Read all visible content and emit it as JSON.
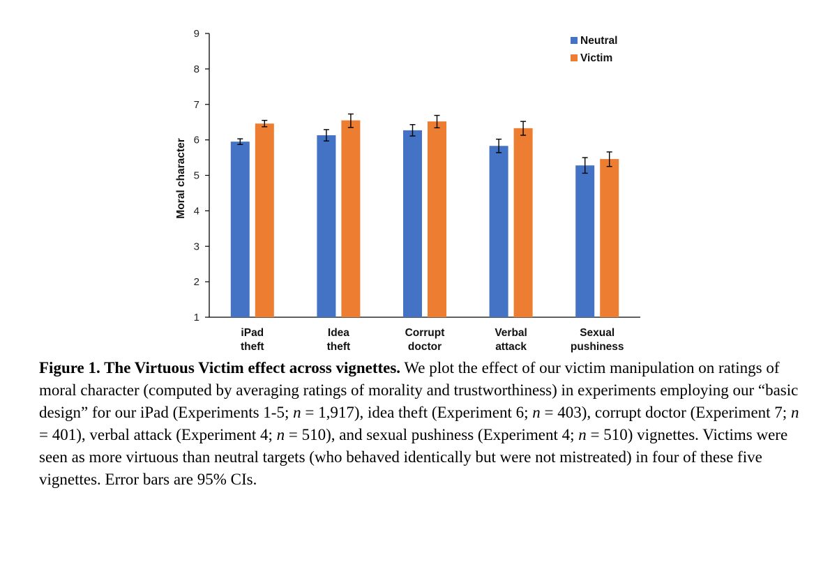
{
  "chart_data": {
    "type": "bar",
    "ylabel": "Moral character",
    "ylim": [
      1,
      9
    ],
    "yticks": [
      1,
      2,
      3,
      4,
      5,
      6,
      7,
      8,
      9
    ],
    "legend_position": "top-right",
    "categories": [
      [
        "iPad",
        "theft"
      ],
      [
        "Idea",
        "theft"
      ],
      [
        "Corrupt",
        "doctor"
      ],
      [
        "Verbal",
        "attack"
      ],
      [
        "Sexual",
        "pushiness"
      ]
    ],
    "series": [
      {
        "name": "Neutral",
        "color": "#4472C4",
        "values": [
          5.95,
          6.13,
          6.27,
          5.83,
          5.28
        ],
        "ci_low": [
          5.87,
          5.97,
          6.11,
          5.64,
          5.06
        ],
        "ci_high": [
          6.03,
          6.29,
          6.43,
          6.02,
          5.5
        ]
      },
      {
        "name": "Victim",
        "color": "#ED7D31",
        "values": [
          6.46,
          6.55,
          6.52,
          6.33,
          5.46
        ],
        "ci_low": [
          6.37,
          6.35,
          6.34,
          6.13,
          5.25
        ],
        "ci_high": [
          6.55,
          6.73,
          6.69,
          6.52,
          5.66
        ]
      }
    ]
  },
  "caption": {
    "lead": "Figure 1. The Virtuous Victim effect across vignettes.",
    "parts": [
      " We plot the effect of our victim manipulation on ratings of moral character (computed by averaging ratings of morality and trustworthiness) in experiments employing our “basic design” for our iPad (Experiments 1-5; ",
      "n",
      " = 1,917), idea theft (Experiment 6; ",
      "n",
      " = 403), corrupt doctor (Experiment 7; ",
      "n",
      " = 401), verbal attack (Experiment 4; ",
      "n",
      " = 510), and sexual pushiness (Experiment 4; ",
      "n",
      " = 510) vignettes. Victims were seen as more virtuous than neutral targets (who behaved identically but were not mistreated) in four of these five vignettes. Error bars are 95% CIs."
    ]
  }
}
